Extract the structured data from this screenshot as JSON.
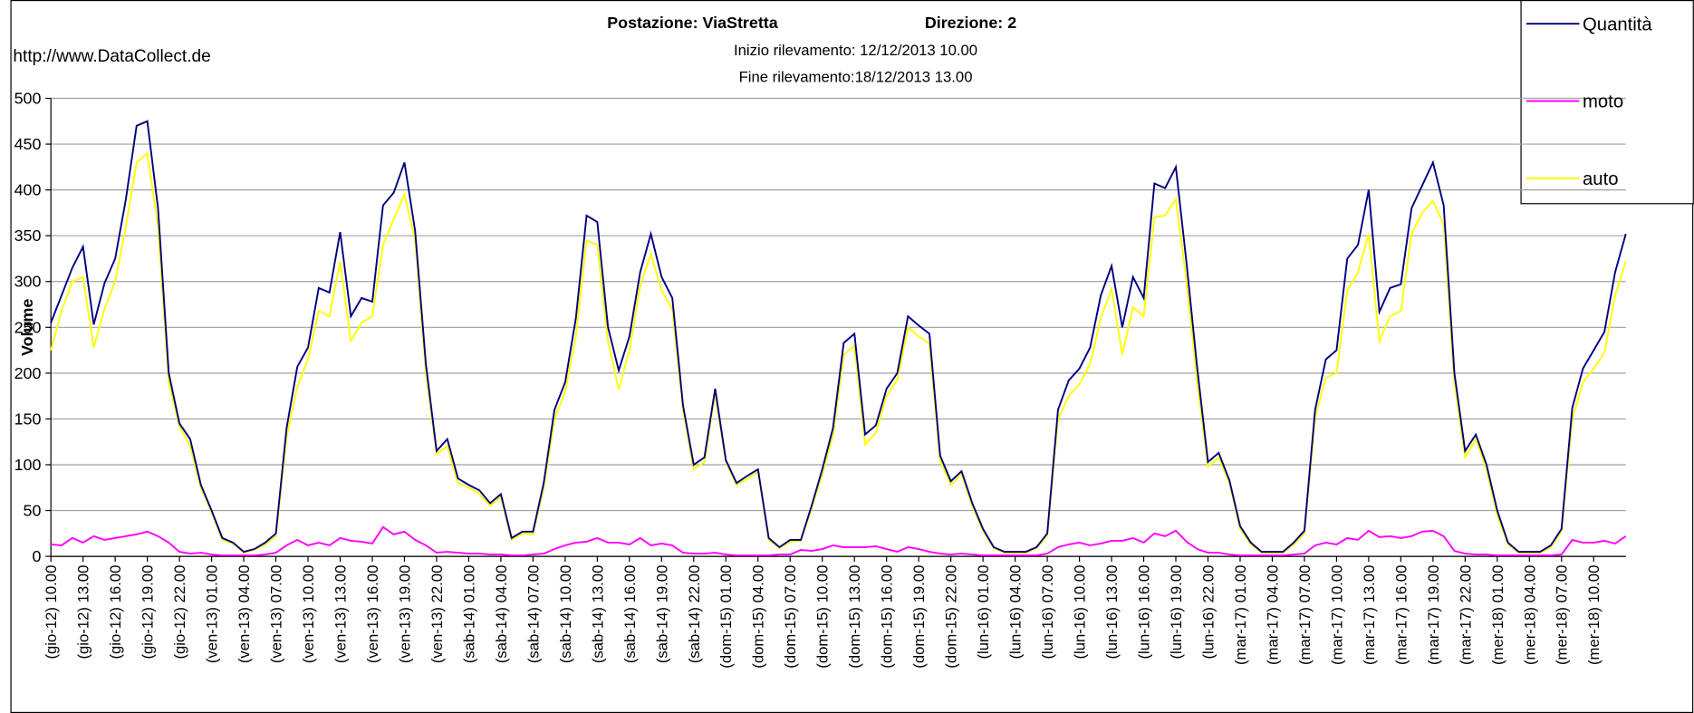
{
  "chart_data": {
    "type": "line",
    "title": "Postazione: ViaStretta",
    "title_right": "Direzione: 2",
    "subtitle": [
      "Inizio rilevamento: 12/12/2013 10.00",
      "Fine rilevamento:18/12/2013 13.00"
    ],
    "annotation": "http://www.DataCollect.de",
    "ylabel": "Volume",
    "ylim": [
      0,
      500
    ],
    "yticks": [
      0,
      50,
      100,
      150,
      200,
      250,
      300,
      350,
      400,
      450,
      500
    ],
    "grid": true,
    "legend": "top-right",
    "categories": [
      "(gio-12) 10.00",
      null,
      null,
      "(gio-12) 13.00",
      null,
      null,
      "(gio-12) 16.00",
      null,
      null,
      "(gio-12) 19.00",
      null,
      null,
      "(gio-12) 22.00",
      null,
      null,
      "(ven-13) 01.00",
      null,
      null,
      "(ven-13) 04.00",
      null,
      null,
      "(ven-13) 07.00",
      null,
      null,
      "(ven-13) 10.00",
      null,
      null,
      "(ven-13) 13.00",
      null,
      null,
      "(ven-13) 16.00",
      null,
      null,
      "(ven-13) 19.00",
      null,
      null,
      "(ven-13) 22.00",
      null,
      null,
      "(sab-14) 01.00",
      null,
      null,
      "(sab-14) 04.00",
      null,
      null,
      "(sab-14) 07.00",
      null,
      null,
      "(sab-14) 10.00",
      null,
      null,
      "(sab-14) 13.00",
      null,
      null,
      "(sab-14) 16.00",
      null,
      null,
      "(sab-14) 19.00",
      null,
      null,
      "(sab-14) 22.00",
      null,
      null,
      "(dom-15) 01.00",
      null,
      null,
      "(dom-15) 04.00",
      null,
      null,
      "(dom-15) 07.00",
      null,
      null,
      "(dom-15) 10.00",
      null,
      null,
      "(dom-15) 13.00",
      null,
      null,
      "(dom-15) 16.00",
      null,
      null,
      "(dom-15) 19.00",
      null,
      null,
      "(dom-15) 22.00",
      null,
      null,
      "(lun-16) 01.00",
      null,
      null,
      "(lun-16) 04.00",
      null,
      null,
      "(lun-16) 07.00",
      null,
      null,
      "(lun-16) 10.00",
      null,
      null,
      "(lun-16) 13.00",
      null,
      null,
      "(lun-16) 16.00",
      null,
      null,
      "(lun-16) 19.00",
      null,
      null,
      "(lun-16) 22.00",
      null,
      null,
      "(mar-17) 01.00",
      null,
      null,
      "(mar-17) 04.00",
      null,
      null,
      "(mar-17) 07.00",
      null,
      null,
      "(mar-17) 10.00",
      null,
      null,
      "(mar-17) 13.00",
      null,
      null,
      "(mar-17) 16.00",
      null,
      null,
      "(mar-17) 19.00",
      null,
      null,
      "(mar-17) 22.00",
      null,
      null,
      "(mer-18) 01.00",
      null,
      null,
      "(mer-18) 04.00",
      null,
      null,
      "(mer-18) 07.00",
      null,
      null,
      "(mer-18) 10.00",
      null,
      null,
      null
    ],
    "series": [
      {
        "name": "Quantità",
        "color": "#000080",
        "values": [
          255,
          285,
          315,
          338,
          253,
          298,
          325,
          390,
          470,
          475,
          380,
          200,
          145,
          128,
          78,
          50,
          20,
          15,
          5,
          8,
          15,
          25,
          140,
          207,
          228,
          293,
          288,
          354,
          262,
          282,
          278,
          383,
          397,
          430,
          355,
          210,
          115,
          128,
          85,
          78,
          72,
          58,
          68,
          20,
          27,
          27,
          80,
          160,
          190,
          260,
          372,
          365,
          250,
          203,
          240,
          310,
          352,
          305,
          282,
          165,
          100,
          108,
          183,
          105,
          80,
          88,
          95,
          20,
          10,
          18,
          18,
          55,
          95,
          140,
          233,
          243,
          133,
          143,
          183,
          200,
          262,
          252,
          243,
          110,
          82,
          93,
          58,
          30,
          10,
          5,
          5,
          5,
          10,
          25,
          160,
          192,
          205,
          228,
          285,
          317,
          250,
          305,
          282,
          407,
          402,
          425,
          320,
          205,
          103,
          113,
          83,
          33,
          15,
          5,
          5,
          5,
          15,
          28,
          160,
          215,
          225,
          325,
          340,
          400,
          267,
          293,
          297,
          380,
          405,
          430,
          383,
          200,
          115,
          133,
          100,
          50,
          15,
          5,
          5,
          5,
          12,
          30,
          162,
          205,
          225,
          245,
          310,
          352
        ]
      },
      {
        "name": "moto",
        "color": "#ff00ff",
        "values": [
          13,
          12,
          20,
          15,
          22,
          18,
          20,
          22,
          24,
          27,
          22,
          15,
          5,
          3,
          4,
          2,
          1,
          1,
          1,
          1,
          2,
          4,
          12,
          18,
          12,
          15,
          12,
          20,
          17,
          16,
          14,
          32,
          24,
          27,
          18,
          12,
          4,
          5,
          4,
          3,
          3,
          2,
          2,
          1,
          1,
          2,
          3,
          8,
          12,
          15,
          16,
          20,
          15,
          15,
          13,
          20,
          12,
          14,
          12,
          4,
          3,
          3,
          4,
          2,
          1,
          1,
          1,
          1,
          2,
          2,
          7,
          6,
          8,
          12,
          10,
          10,
          10,
          11,
          8,
          5,
          10,
          8,
          5,
          3,
          2,
          3,
          2,
          1,
          1,
          1,
          1,
          1,
          1,
          3,
          10,
          13,
          15,
          12,
          14,
          17,
          17,
          20,
          15,
          25,
          22,
          28,
          16,
          8,
          4,
          4,
          2,
          1,
          1,
          1,
          1,
          1,
          2,
          3,
          12,
          15,
          13,
          20,
          18,
          28,
          21,
          22,
          20,
          22,
          27,
          28,
          22,
          6,
          3,
          2,
          2,
          1,
          1,
          1,
          1,
          1,
          1,
          2,
          18,
          15,
          15,
          17,
          14,
          22
        ]
      },
      {
        "name": "auto",
        "color": "#ffff00",
        "values": [
          225,
          268,
          300,
          305,
          228,
          270,
          300,
          360,
          430,
          440,
          360,
          190,
          142,
          120,
          75,
          48,
          18,
          14,
          4,
          7,
          13,
          22,
          130,
          185,
          215,
          268,
          262,
          322,
          235,
          255,
          262,
          340,
          368,
          395,
          345,
          200,
          112,
          120,
          80,
          75,
          68,
          55,
          65,
          18,
          25,
          24,
          75,
          150,
          180,
          240,
          345,
          340,
          235,
          182,
          225,
          295,
          330,
          290,
          270,
          160,
          95,
          103,
          178,
          103,
          78,
          85,
          92,
          18,
          9,
          16,
          17,
          52,
          90,
          132,
          220,
          230,
          122,
          135,
          175,
          193,
          250,
          240,
          232,
          105,
          78,
          90,
          55,
          28,
          9,
          4,
          4,
          4,
          9,
          23,
          150,
          175,
          188,
          210,
          260,
          292,
          220,
          272,
          262,
          370,
          372,
          390,
          300,
          190,
          98,
          108,
          80,
          30,
          13,
          4,
          4,
          4,
          13,
          25,
          152,
          195,
          200,
          290,
          310,
          352,
          235,
          262,
          268,
          352,
          375,
          388,
          362,
          190,
          108,
          128,
          95,
          45,
          13,
          4,
          4,
          4,
          10,
          28,
          150,
          190,
          205,
          222,
          285,
          322
        ]
      }
    ]
  }
}
